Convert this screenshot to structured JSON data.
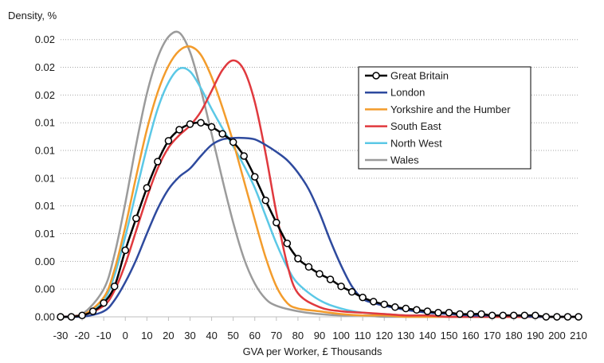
{
  "chart_data": {
    "type": "line",
    "title": "",
    "ylabel": "Density, %",
    "xlabel": "GVA per Worker, £ Thousands",
    "xlim": [
      -30,
      210
    ],
    "ylim": [
      0,
      0.0205
    ],
    "grid": "horizontal dotted",
    "legend_position": "top-right",
    "x_ticks": [
      -30,
      -20,
      -10,
      0,
      10,
      20,
      30,
      40,
      50,
      60,
      70,
      80,
      90,
      100,
      110,
      120,
      130,
      140,
      150,
      160,
      170,
      180,
      190,
      200,
      210
    ],
    "x_tick_labels": [
      "-30",
      "-20",
      "-10",
      "0",
      "10",
      "20",
      "30",
      "40",
      "50",
      "60",
      "70",
      "80",
      "90",
      "100",
      "110",
      "120",
      "130",
      "140",
      "150",
      "160",
      "170",
      "180",
      "190",
      "200",
      "210"
    ],
    "y_ticks": [
      0,
      0.002,
      0.004,
      0.006,
      0.008,
      0.01,
      0.012,
      0.014,
      0.016,
      0.018,
      0.02
    ],
    "y_tick_labels": [
      "0.00",
      "0.00",
      "0.00",
      "0.01",
      "0.01",
      "0.01",
      "0.01",
      "0.01",
      "0.02",
      "0.02",
      "0.02"
    ],
    "series": [
      {
        "name": "Great Britain",
        "color": "#000000",
        "markers": true,
        "x": [
          -30,
          -25,
          -20,
          -15,
          -10,
          -5,
          0,
          5,
          10,
          15,
          20,
          25,
          30,
          35,
          40,
          45,
          50,
          55,
          60,
          65,
          70,
          75,
          80,
          85,
          90,
          95,
          100,
          105,
          110,
          115,
          120,
          125,
          130,
          135,
          140,
          145,
          150,
          155,
          160,
          165,
          170,
          175,
          180,
          185,
          190,
          195,
          200,
          205,
          210
        ],
        "y": [
          0,
          0,
          0.0001,
          0.0004,
          0.001,
          0.0022,
          0.0048,
          0.0071,
          0.0093,
          0.0112,
          0.0127,
          0.0135,
          0.0139,
          0.014,
          0.0137,
          0.0132,
          0.0126,
          0.0116,
          0.0101,
          0.0084,
          0.0068,
          0.0053,
          0.0042,
          0.0036,
          0.0031,
          0.0027,
          0.0022,
          0.0018,
          0.0014,
          0.0011,
          0.0009,
          0.0007,
          0.0006,
          0.0005,
          0.0004,
          0.0003,
          0.0003,
          0.0002,
          0.0002,
          0.0002,
          0.0001,
          0.0001,
          0.0001,
          0.0001,
          0.0001,
          0,
          0,
          0,
          0
        ]
      },
      {
        "name": "London",
        "color": "#2E4A9E",
        "markers": false,
        "x": [
          -30,
          -20,
          -10,
          -5,
          0,
          5,
          10,
          15,
          20,
          25,
          30,
          35,
          40,
          45,
          50,
          55,
          60,
          65,
          70,
          75,
          80,
          85,
          90,
          95,
          100,
          105,
          110,
          115,
          120,
          130,
          140,
          150,
          160,
          170,
          180,
          190,
          200,
          210
        ],
        "y": [
          0,
          0,
          0.0004,
          0.0012,
          0.0025,
          0.0041,
          0.006,
          0.0078,
          0.0092,
          0.0101,
          0.0107,
          0.0116,
          0.0124,
          0.0128,
          0.0129,
          0.0129,
          0.0128,
          0.0124,
          0.0119,
          0.0113,
          0.0104,
          0.0092,
          0.0075,
          0.0055,
          0.0037,
          0.0022,
          0.0013,
          0.001,
          0.0008,
          0.0005,
          0.0003,
          0.0002,
          0.0001,
          0.0001,
          0.0001,
          0,
          0,
          0
        ]
      },
      {
        "name": "Yorkshire and the Humber",
        "color": "#F39C2C",
        "markers": false,
        "x": [
          -30,
          -20,
          -10,
          -5,
          0,
          5,
          10,
          15,
          20,
          25,
          30,
          35,
          40,
          45,
          50,
          55,
          60,
          65,
          70,
          75,
          80,
          90,
          100,
          110,
          120,
          130,
          140,
          150,
          160,
          170,
          180,
          190,
          200,
          210
        ],
        "y": [
          0,
          0.0001,
          0.0014,
          0.0034,
          0.0065,
          0.0101,
          0.0135,
          0.0162,
          0.0181,
          0.0192,
          0.0195,
          0.0189,
          0.0173,
          0.0151,
          0.0126,
          0.0098,
          0.007,
          0.0043,
          0.0022,
          0.001,
          0.0006,
          0.0004,
          0.0002,
          0.0001,
          0.0001,
          0,
          0,
          0,
          0,
          0,
          0,
          0,
          0,
          0
        ]
      },
      {
        "name": "South East",
        "color": "#E0393E",
        "markers": false,
        "x": [
          -30,
          -20,
          -10,
          -5,
          0,
          5,
          10,
          15,
          20,
          25,
          30,
          35,
          40,
          45,
          50,
          55,
          60,
          65,
          70,
          75,
          80,
          90,
          100,
          110,
          120,
          130,
          140,
          150,
          160,
          170,
          180,
          190,
          200,
          210
        ],
        "y": [
          0,
          0.0001,
          0.0008,
          0.0019,
          0.0038,
          0.0062,
          0.0086,
          0.0107,
          0.0122,
          0.0131,
          0.0138,
          0.0148,
          0.0163,
          0.0178,
          0.0185,
          0.0178,
          0.0155,
          0.0118,
          0.0075,
          0.0038,
          0.0017,
          0.0007,
          0.0004,
          0.0003,
          0.0002,
          0.0001,
          0.0001,
          0,
          0,
          0,
          0,
          0,
          0,
          0
        ]
      },
      {
        "name": "North West",
        "color": "#5BC8E6",
        "markers": false,
        "x": [
          -30,
          -20,
          -10,
          -5,
          0,
          5,
          10,
          15,
          20,
          25,
          30,
          35,
          40,
          45,
          50,
          55,
          60,
          65,
          70,
          75,
          80,
          90,
          100,
          110,
          120,
          130,
          140,
          150,
          160,
          170,
          180,
          190,
          200,
          210
        ],
        "y": [
          0,
          0.0001,
          0.0012,
          0.003,
          0.0058,
          0.009,
          0.0122,
          0.015,
          0.0169,
          0.0179,
          0.0177,
          0.0165,
          0.015,
          0.0136,
          0.0123,
          0.0109,
          0.0093,
          0.0073,
          0.0053,
          0.0036,
          0.0024,
          0.0012,
          0.0006,
          0.0003,
          0.0002,
          0.0001,
          0.0001,
          0,
          0,
          0,
          0,
          0,
          0,
          0
        ]
      },
      {
        "name": "Wales",
        "color": "#9B9B9B",
        "markers": false,
        "x": [
          -30,
          -20,
          -10,
          -5,
          0,
          5,
          10,
          15,
          20,
          25,
          30,
          35,
          40,
          45,
          50,
          55,
          60,
          65,
          70,
          80,
          90,
          100,
          110,
          120,
          130,
          140,
          150,
          160,
          170,
          180,
          190,
          200,
          210
        ],
        "y": [
          0,
          0.0002,
          0.002,
          0.0045,
          0.0082,
          0.0124,
          0.0161,
          0.0187,
          0.0202,
          0.0205,
          0.0191,
          0.0164,
          0.0132,
          0.0099,
          0.0068,
          0.0042,
          0.0024,
          0.0013,
          0.0008,
          0.0004,
          0.0002,
          0.0001,
          0.0001,
          0,
          0,
          0,
          0,
          0,
          0,
          0,
          0,
          0,
          0
        ]
      }
    ]
  }
}
